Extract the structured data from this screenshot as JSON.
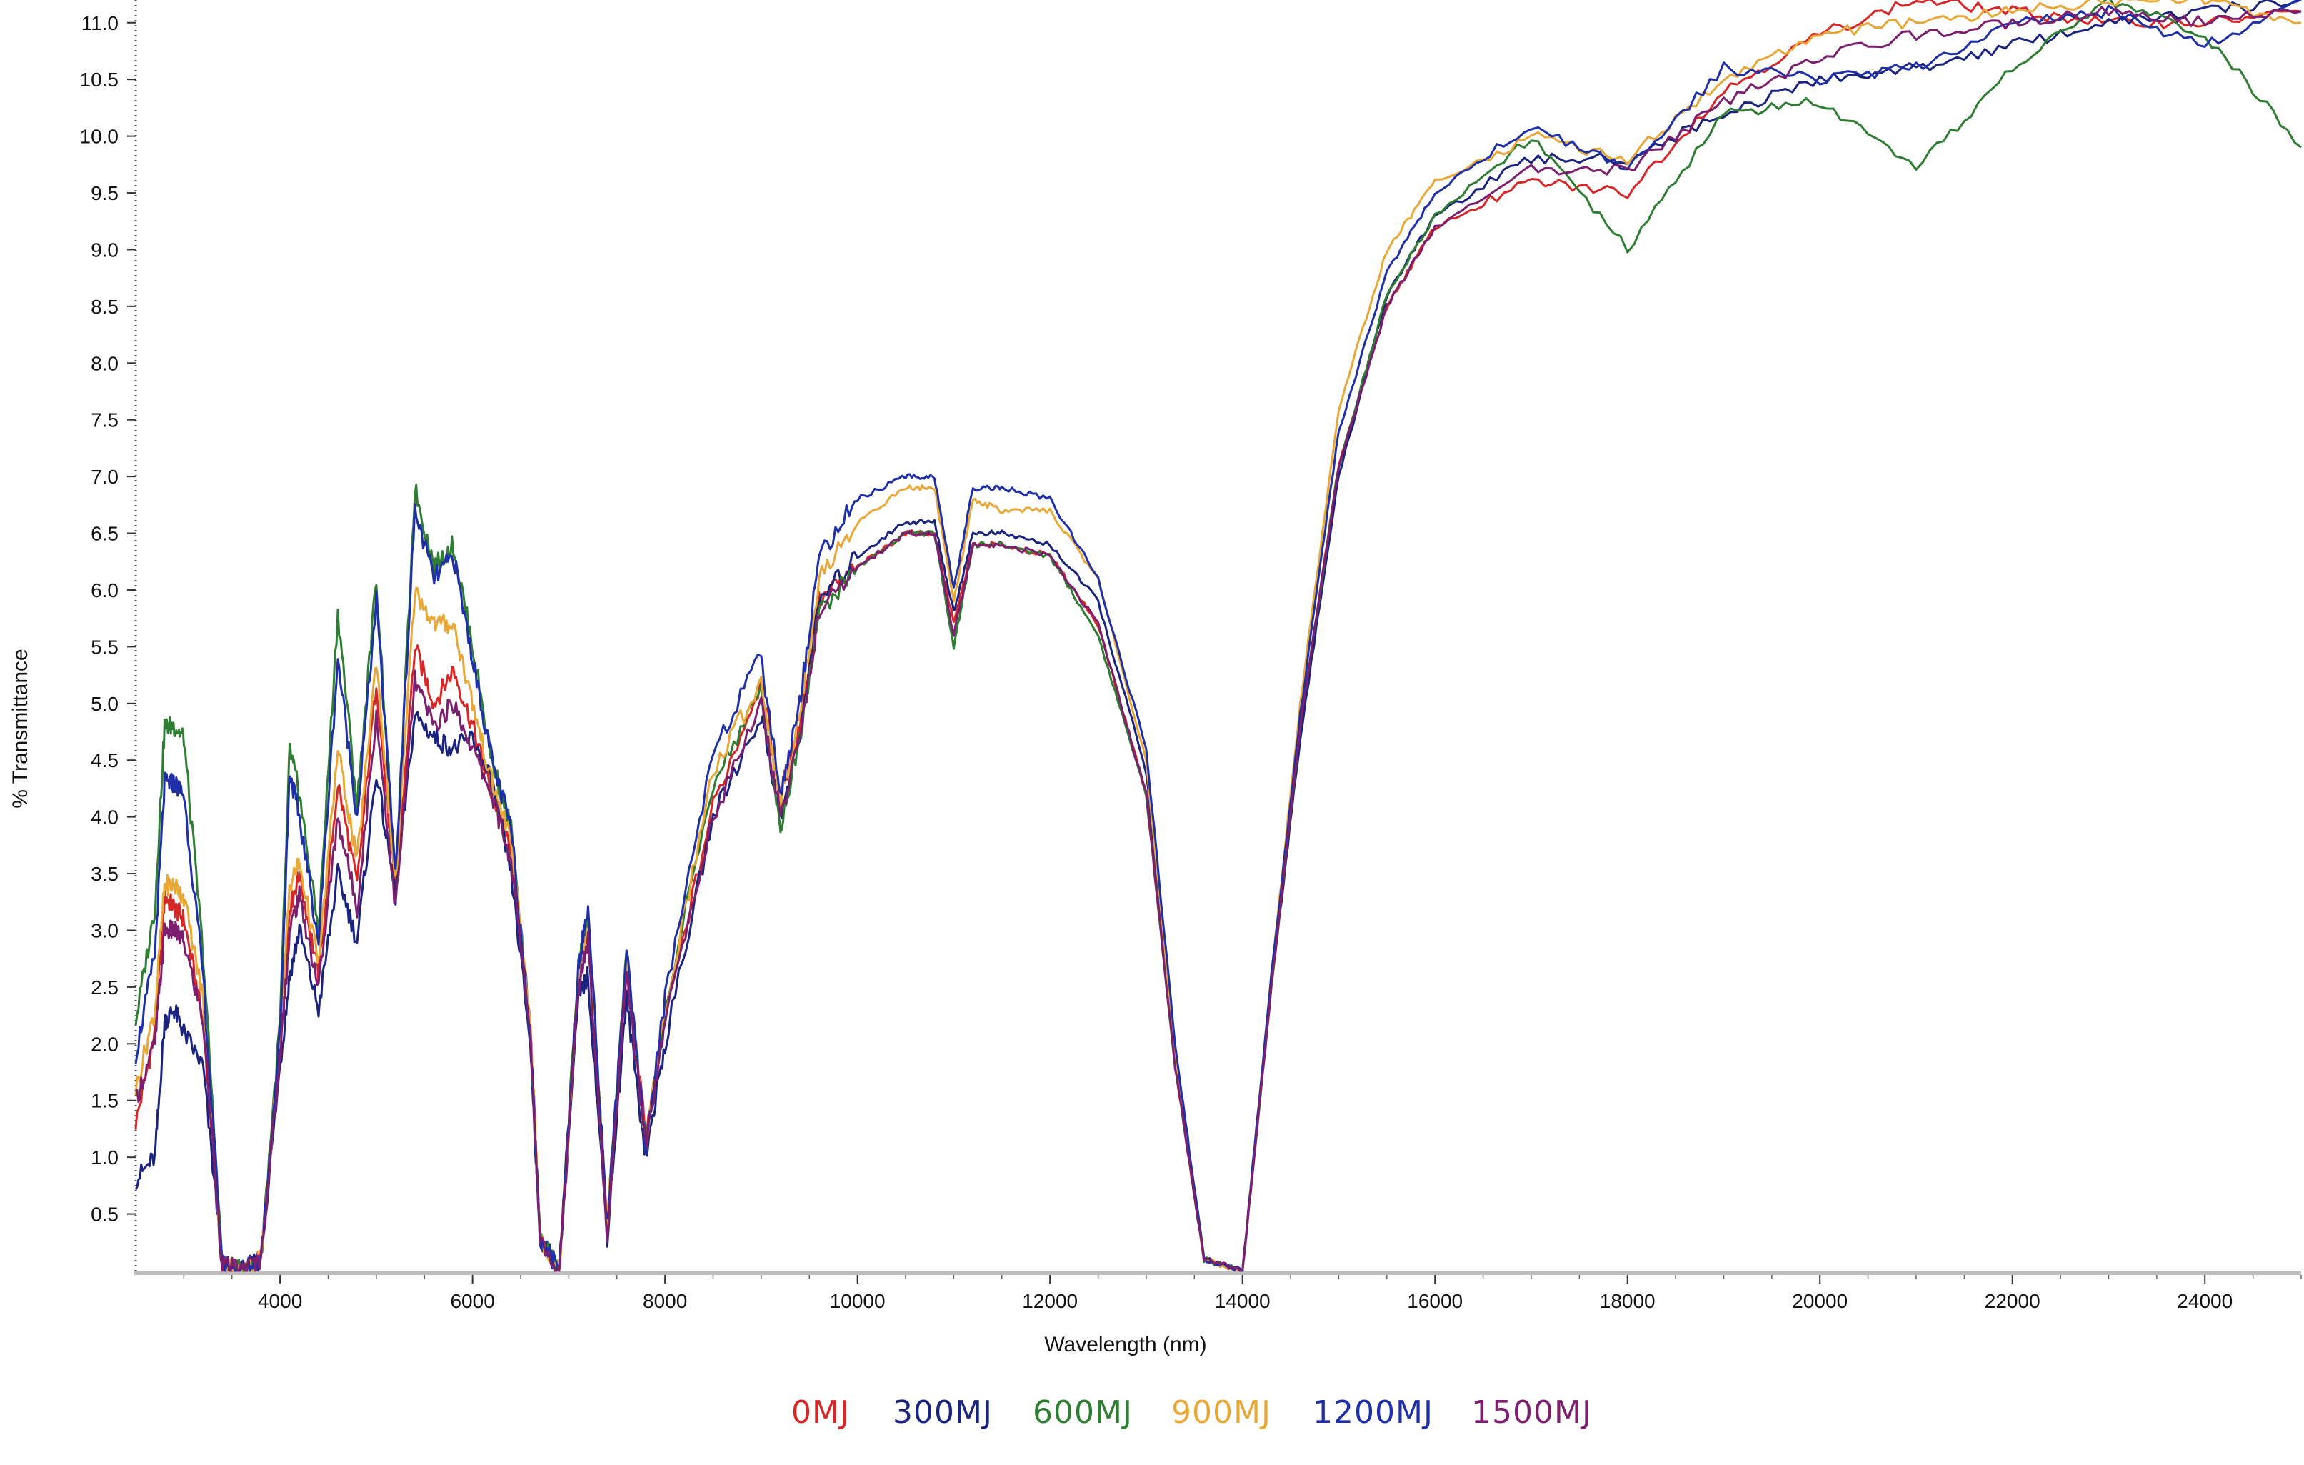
{
  "chart_data": {
    "type": "line",
    "title": "",
    "xlabel": "Wavelength (nm)",
    "ylabel": "% Transmittance",
    "xlim": [
      2500,
      25000
    ],
    "ylim": [
      0,
      11.2
    ],
    "x_ticks": [
      4000,
      6000,
      8000,
      10000,
      12000,
      14000,
      16000,
      18000,
      20000,
      22000,
      24000
    ],
    "y_ticks": [
      0.5,
      1.0,
      1.5,
      2.0,
      2.5,
      3.0,
      3.5,
      4.0,
      4.5,
      5.0,
      5.5,
      6.0,
      6.5,
      7.0,
      7.5,
      8.0,
      8.5,
      9.0,
      9.5,
      10.0,
      10.5,
      11.0
    ],
    "x_tick_labels": [
      "4000",
      "6000",
      "8000",
      "10000",
      "12000",
      "14000",
      "16000",
      "18000",
      "20000",
      "22000",
      "24000"
    ],
    "y_tick_labels": [
      "0.5",
      "1.0",
      "1.5",
      "2.0",
      "2.5",
      "3.0",
      "3.5",
      "4.0",
      "4.5",
      "5.0",
      "5.5",
      "6.0",
      "6.5",
      "7.0",
      "7.5",
      "8.0",
      "8.5",
      "9.0",
      "9.5",
      "10.0",
      "10.5",
      "11.0"
    ],
    "grid": false,
    "legend_position": "bottom-center",
    "x": [
      2500,
      2700,
      2800,
      2900,
      3000,
      3200,
      3400,
      3600,
      3800,
      4000,
      4100,
      4200,
      4400,
      4600,
      4800,
      5000,
      5200,
      5400,
      5600,
      5800,
      6000,
      6200,
      6400,
      6600,
      6700,
      6900,
      7100,
      7200,
      7400,
      7600,
      7800,
      8000,
      8500,
      9000,
      9200,
      9400,
      9600,
      10000,
      10500,
      10800,
      11000,
      11200,
      11500,
      12000,
      12500,
      13000,
      13300,
      13600,
      14000,
      14300,
      14600,
      15000,
      15500,
      16000,
      17000,
      18000,
      19000,
      20000,
      21000,
      22000,
      23000,
      24000,
      25000
    ],
    "series": [
      {
        "name": "0MJ",
        "color": "#d62728",
        "values": [
          1.3,
          2.1,
          3.3,
          3.2,
          3.1,
          2.2,
          0.05,
          0.0,
          0.1,
          2.0,
          3.2,
          3.5,
          2.6,
          4.3,
          3.4,
          5.2,
          3.3,
          5.5,
          5.0,
          5.3,
          4.8,
          4.2,
          3.7,
          2.2,
          0.3,
          0.0,
          2.6,
          3.0,
          0.4,
          2.7,
          1.2,
          2.2,
          4.1,
          5.2,
          4.2,
          4.8,
          5.9,
          6.2,
          6.5,
          6.5,
          5.7,
          6.4,
          6.4,
          6.3,
          5.7,
          4.2,
          1.8,
          0.1,
          0.0,
          2.5,
          4.8,
          7.1,
          8.5,
          9.2,
          9.6,
          9.5,
          10.4,
          10.9,
          11.2,
          11.1,
          11.0,
          11.0,
          11.1
        ]
      },
      {
        "name": "300MJ",
        "color": "#1a237e",
        "values": [
          0.8,
          1.0,
          2.2,
          2.3,
          2.1,
          1.8,
          0.05,
          0.0,
          0.1,
          1.8,
          2.6,
          3.0,
          2.3,
          3.5,
          2.9,
          4.4,
          3.3,
          4.9,
          4.7,
          4.6,
          4.7,
          4.3,
          3.5,
          2.0,
          0.3,
          0.0,
          2.4,
          2.6,
          0.3,
          2.4,
          1.0,
          2.0,
          4.0,
          4.9,
          4.0,
          4.7,
          5.9,
          6.3,
          6.6,
          6.6,
          5.8,
          6.5,
          6.5,
          6.4,
          5.9,
          4.4,
          1.9,
          0.1,
          0.0,
          2.5,
          4.7,
          7.0,
          8.6,
          9.3,
          9.8,
          9.8,
          10.2,
          10.5,
          10.6,
          10.8,
          11.0,
          11.1,
          11.2
        ]
      },
      {
        "name": "600MJ",
        "color": "#2e7d32",
        "values": [
          2.2,
          3.2,
          4.8,
          4.8,
          4.7,
          2.8,
          0.05,
          0.0,
          0.1,
          2.2,
          4.6,
          4.2,
          3.0,
          5.8,
          4.1,
          6.1,
          3.4,
          6.9,
          6.2,
          6.4,
          5.5,
          4.5,
          3.9,
          2.1,
          0.3,
          0.0,
          2.7,
          3.1,
          0.4,
          2.8,
          1.1,
          2.3,
          4.3,
          5.1,
          3.9,
          4.7,
          5.8,
          6.2,
          6.5,
          6.5,
          5.5,
          6.4,
          6.4,
          6.3,
          5.6,
          4.2,
          1.8,
          0.1,
          0.0,
          2.5,
          4.8,
          7.1,
          8.6,
          9.3,
          10.0,
          9.0,
          10.2,
          10.3,
          9.7,
          10.6,
          11.2,
          10.9,
          9.9
        ]
      },
      {
        "name": "900MJ",
        "color": "#e8a838",
        "values": [
          1.6,
          2.3,
          3.4,
          3.4,
          3.3,
          2.4,
          0.05,
          0.0,
          0.1,
          2.0,
          3.4,
          3.6,
          2.7,
          4.6,
          3.6,
          5.4,
          3.4,
          6.0,
          5.7,
          5.7,
          5.0,
          4.3,
          3.8,
          2.2,
          0.3,
          0.0,
          2.6,
          3.0,
          0.4,
          2.7,
          1.1,
          2.3,
          4.4,
          5.2,
          4.1,
          4.9,
          6.1,
          6.6,
          6.9,
          6.9,
          5.9,
          6.8,
          6.7,
          6.7,
          6.1,
          4.5,
          1.9,
          0.1,
          0.0,
          2.6,
          5.0,
          7.6,
          9.0,
          9.6,
          10.0,
          9.8,
          10.5,
          10.9,
          11.0,
          11.1,
          11.2,
          11.2,
          11.0
        ]
      },
      {
        "name": "1200MJ",
        "color": "#1f2fa8",
        "values": [
          1.9,
          2.8,
          4.3,
          4.3,
          4.2,
          2.6,
          0.05,
          0.0,
          0.1,
          2.1,
          4.4,
          4.0,
          2.9,
          5.4,
          4.0,
          5.9,
          3.5,
          6.7,
          6.1,
          6.3,
          5.4,
          4.5,
          3.9,
          2.1,
          0.3,
          0.0,
          2.7,
          3.2,
          0.4,
          2.8,
          1.1,
          2.4,
          4.6,
          5.4,
          4.2,
          5.0,
          6.3,
          6.8,
          7.0,
          7.0,
          6.0,
          6.9,
          6.9,
          6.8,
          6.1,
          4.6,
          2.0,
          0.1,
          0.0,
          2.6,
          4.9,
          7.4,
          8.8,
          9.5,
          10.1,
          9.7,
          10.6,
          10.5,
          10.6,
          11.0,
          11.1,
          10.8,
          11.2
        ]
      },
      {
        "name": "1500MJ",
        "color": "#7b1f6e",
        "values": [
          1.5,
          2.0,
          3.0,
          3.0,
          2.9,
          2.2,
          0.05,
          0.0,
          0.1,
          1.9,
          3.0,
          3.3,
          2.5,
          4.0,
          3.2,
          4.9,
          3.2,
          5.2,
          4.8,
          5.0,
          4.6,
          4.2,
          3.6,
          2.1,
          0.3,
          0.0,
          2.5,
          2.9,
          0.3,
          2.6,
          1.1,
          2.2,
          4.0,
          5.0,
          4.0,
          4.7,
          5.8,
          6.2,
          6.5,
          6.5,
          5.6,
          6.4,
          6.4,
          6.3,
          5.7,
          4.2,
          1.8,
          0.1,
          0.0,
          2.5,
          4.8,
          7.1,
          8.5,
          9.2,
          9.7,
          9.7,
          10.3,
          10.7,
          10.9,
          11.0,
          11.1,
          11.0,
          11.1
        ]
      }
    ]
  }
}
